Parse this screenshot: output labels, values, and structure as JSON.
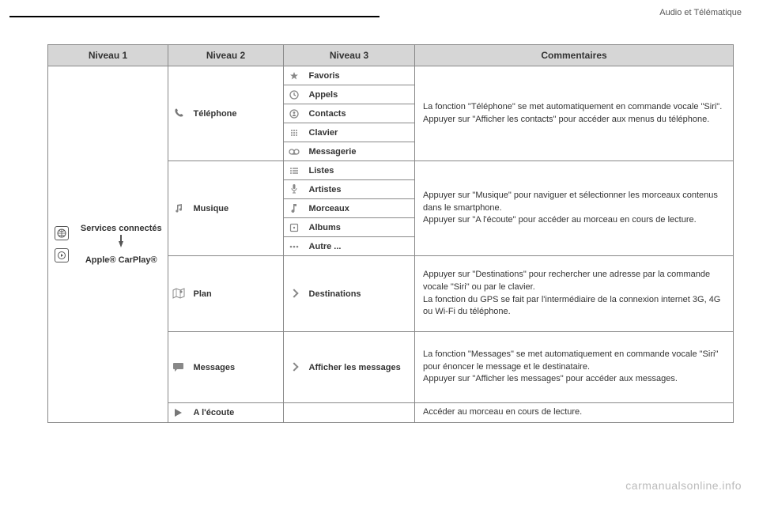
{
  "page": {
    "breadcrumb": "Audio et Télématique",
    "watermark": "carmanualsonline.info",
    "page_number": ""
  },
  "table": {
    "headers": {
      "n1": "Niveau 1",
      "n2": "Niveau 2",
      "n3": "Niveau 3",
      "comments": "Commentaires"
    },
    "level1": {
      "top_line": "Services connectés",
      "bottom_line": "Apple® CarPlay®"
    },
    "groups": [
      {
        "n2_label": "Téléphone",
        "items": [
          {
            "label": "Favoris",
            "icon": "star"
          },
          {
            "label": "Appels",
            "icon": "clock"
          },
          {
            "label": "Contacts",
            "icon": "circle-i"
          },
          {
            "label": "Clavier",
            "icon": "keypad"
          },
          {
            "label": "Messagerie",
            "icon": "voicemail"
          }
        ],
        "comment": "La fonction \"Téléphone\" se met automatiquement en commande vocale \"Siri\".\nAppuyer sur \"Afficher les contacts\" pour accéder aux menus du téléphone."
      },
      {
        "n2_label": "Musique",
        "items": [
          {
            "label": "Listes",
            "icon": "list"
          },
          {
            "label": "Artistes",
            "icon": "mic"
          },
          {
            "label": "Morceaux",
            "icon": "note"
          },
          {
            "label": "Albums",
            "icon": "album"
          },
          {
            "label": "Autre ...",
            "icon": "dots"
          }
        ],
        "comment": "Appuyer sur \"Musique\" pour naviguer et sélectionner les morceaux contenus dans le smartphone.\nAppuyer sur \"A l'écoute\" pour accéder au morceau en cours de lecture."
      },
      {
        "n2_label": "Plan",
        "single": {
          "label": "Destinations",
          "icon": "chevron"
        },
        "comment": "Appuyer sur \"Destinations\" pour rechercher une adresse par la commande vocale \"Siri\" ou par le clavier.\nLa fonction du GPS se fait par l'intermédiaire de la connexion internet 3G, 4G ou Wi-Fi du téléphone."
      },
      {
        "n2_label": "Messages",
        "single": {
          "label": "Afficher les messages",
          "icon": "chevron"
        },
        "comment": "La fonction \"Messages\" se met automatiquement en commande vocale \"Siri\" pour énoncer le message et le destinataire.\nAppuyer sur \"Afficher les messages\" pour accéder aux messages."
      },
      {
        "n2_label": "A l'écoute",
        "single": null,
        "comment": "Accéder au morceau en cours de lecture."
      }
    ]
  },
  "style": {
    "header_bg": "#d6d6d6",
    "border": "#888888",
    "text": "#333333",
    "muted": "#777777"
  }
}
